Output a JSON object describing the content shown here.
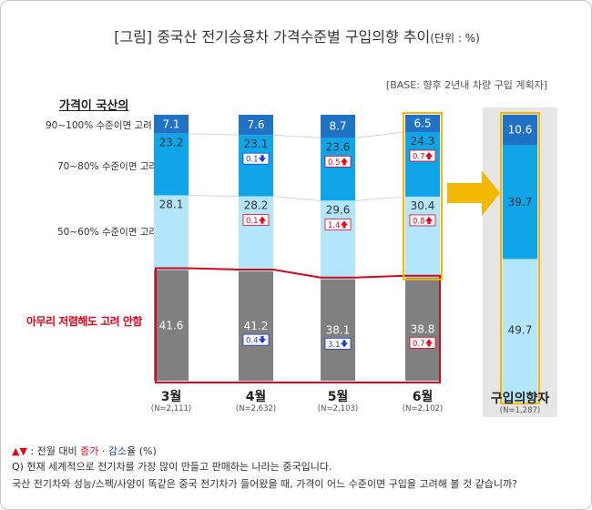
{
  "title": "[그림] 중국산 전기승용차 가격수준별 구입의향 추이",
  "title_unit": "(단위 : %)",
  "base_note": "[BASE: 향후 2년내 차량 구입 계획자]",
  "legend_head": "가격이 국산의",
  "row_labels": [
    "90~100% 수준이면 고려",
    "70~80% 수준이면 고려",
    "50~60% 수준이면 고려"
  ],
  "red_label": "아무리 저렴해도 고려 안함",
  "footer": {
    "legend_sym": "▲▼",
    "legend_pre": " : 전월 대비 ",
    "legend_inc": "증가",
    "legend_mid": " · ",
    "legend_dec": "감소",
    "legend_post": "율 (%)",
    "question": "Q) 현재 세계적으로 전기차를 가장 많이 만들고 판매하는 나라는 중국입니다.",
    "question2": "국산 전기차와 성능/스펙/사양이 똑같은 중국 전기차가 들어왔을 때, 가격이 어느 수준이면  구입을 고려해 볼 것 같습니까?"
  },
  "colors": {
    "c90": "#1f72c4",
    "c70": "#10a4e8",
    "c50": "#b3e6fb",
    "none": "#808080",
    "highlight": "#f5b800",
    "red": "#d0091c",
    "panel": "#e6e6e6"
  },
  "chart_data": {
    "type": "bar",
    "stacked": true,
    "categories": [
      "3월",
      "4월",
      "5월",
      "6월",
      "구입의향자"
    ],
    "n_labels": [
      "(N=2,111)",
      "(N=2,632)",
      "(N=2,103)",
      "(N=2,102)",
      "(N=1,287)"
    ],
    "series": [
      {
        "name": "90~100% 수준이면 고려",
        "values": [
          7.1,
          7.6,
          8.7,
          6.5,
          10.6
        ]
      },
      {
        "name": "70~80% 수준이면 고려",
        "values": [
          23.2,
          23.1,
          23.6,
          24.3,
          39.7
        ]
      },
      {
        "name": "50~60% 수준이면 고려",
        "values": [
          28.1,
          28.2,
          29.6,
          30.4,
          49.7
        ]
      },
      {
        "name": "아무리 저렴해도 고려 안함",
        "values": [
          41.6,
          41.2,
          38.1,
          38.8,
          null
        ]
      }
    ],
    "changes": [
      {
        "category": "4월",
        "series": "70~80% 수준이면 고려",
        "value": "0.1",
        "dir": "down"
      },
      {
        "category": "5월",
        "series": "70~80% 수준이면 고려",
        "value": "0.5",
        "dir": "up"
      },
      {
        "category": "6월",
        "series": "70~80% 수준이면 고려",
        "value": "0.7",
        "dir": "up"
      },
      {
        "category": "4월",
        "series": "50~60% 수준이면 고려",
        "value": "0.1",
        "dir": "up"
      },
      {
        "category": "5월",
        "series": "50~60% 수준이면 고려",
        "value": "1.4",
        "dir": "up"
      },
      {
        "category": "6월",
        "series": "50~60% 수준이면 고려",
        "value": "0.8",
        "dir": "up"
      },
      {
        "category": "4월",
        "series": "아무리 저렴해도 고려 안함",
        "value": "0.4",
        "dir": "down"
      },
      {
        "category": "5월",
        "series": "아무리 저렴해도 고려 안함",
        "value": "3.1",
        "dir": "down"
      },
      {
        "category": "6월",
        "series": "아무리 저렴해도 고려 안함",
        "value": "0.7",
        "dir": "up"
      }
    ],
    "ylim": [
      0,
      100
    ]
  }
}
